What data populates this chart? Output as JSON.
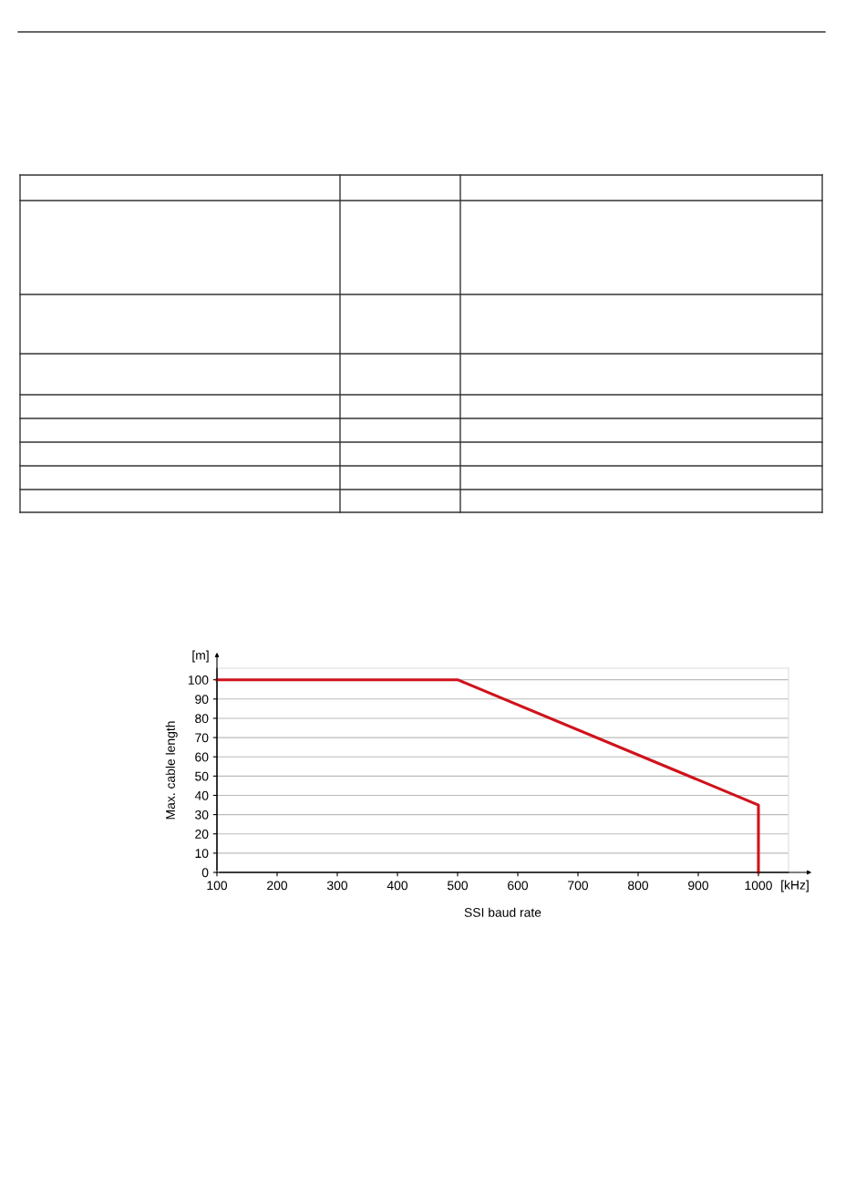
{
  "chart_data": {
    "type": "line",
    "xlabel": "SSI baud rate",
    "ylabel": "Max. cable length",
    "x": [
      100,
      500,
      1000,
      1000
    ],
    "series": [
      {
        "color": "#d0121b",
        "values": [
          100,
          100,
          35,
          0
        ]
      }
    ],
    "xlim": [
      100,
      1050
    ],
    "xticks": [
      100,
      200,
      300,
      400,
      500,
      600,
      700,
      800,
      900,
      1000
    ],
    "ylim": [
      0,
      106
    ],
    "yticks": [
      0,
      10,
      20,
      30,
      40,
      50,
      60,
      70,
      80,
      90,
      100
    ],
    "grid": "y",
    "annotations": [
      "[m]",
      "[kHz]"
    ]
  }
}
